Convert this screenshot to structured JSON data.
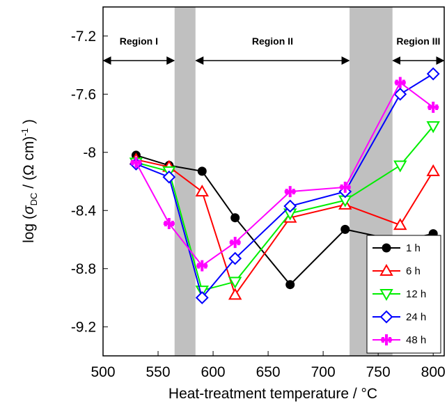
{
  "chart_data": {
    "type": "line",
    "xlabel": "Heat-treatment temperature / °C",
    "ylabel": [
      "log (",
      "σ",
      "DC",
      " / (Ω cm)",
      "-1",
      " )"
    ],
    "x": [
      530,
      560,
      590,
      620,
      670,
      720,
      770,
      800
    ],
    "xlim": [
      500,
      810
    ],
    "xticks": [
      500,
      550,
      600,
      650,
      700,
      750,
      800
    ],
    "ylim": [
      -9.4,
      -7.0
    ],
    "yticks": [
      -9.2,
      -8.8,
      -8.4,
      -8.0,
      -7.6,
      -7.2
    ],
    "bands": [
      [
        565,
        584
      ],
      [
        724,
        763
      ]
    ],
    "band_color": "#c0c0c0",
    "regions": [
      "Region I",
      "Region II",
      "Region III"
    ],
    "legend": "lower right",
    "series": [
      {
        "name": "1 h",
        "color": "#000000",
        "marker": "circle",
        "values": [
          -8.02,
          -8.09,
          -8.13,
          -8.45,
          -8.91,
          -8.53,
          -8.61,
          -8.56
        ]
      },
      {
        "name": "6 h",
        "color": "#ff0000",
        "marker": "triangle-up",
        "values": [
          -8.05,
          -8.1,
          -8.27,
          -8.98,
          -8.45,
          -8.36,
          -8.5,
          -8.13
        ]
      },
      {
        "name": "12 h",
        "color": "#00ee00",
        "marker": "triangle-down",
        "values": [
          -8.07,
          -8.13,
          -8.95,
          -8.89,
          -8.42,
          -8.33,
          -8.09,
          -7.82
        ]
      },
      {
        "name": "24 h",
        "color": "#0000ff",
        "marker": "diamond",
        "values": [
          -8.08,
          -8.17,
          -9.0,
          -8.73,
          -8.37,
          -8.27,
          -7.6,
          -7.46
        ]
      },
      {
        "name": "48 h",
        "color": "#ff00ff",
        "marker": "star",
        "values": [
          -8.07,
          -8.49,
          -8.78,
          -8.62,
          -8.27,
          -8.24,
          -7.52,
          -7.69
        ]
      }
    ]
  }
}
